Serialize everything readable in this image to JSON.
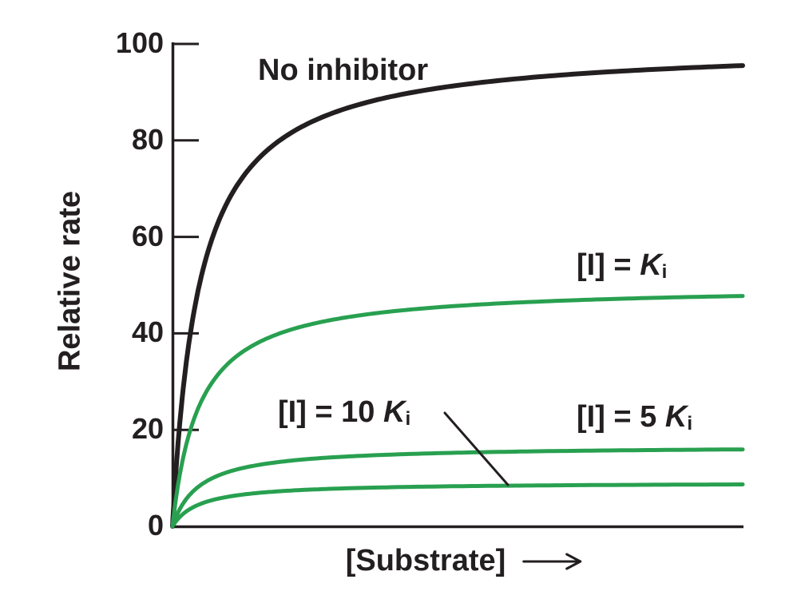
{
  "chart_data": {
    "type": "line",
    "title": "",
    "xlabel": "[Substrate]",
    "ylabel": "Relative rate",
    "x_axis": {
      "label": "[Substrate]",
      "arrow_suffix": true,
      "ticks": [],
      "range": [
        0,
        1
      ],
      "units": "arbitrary (unlabeled)"
    },
    "y_axis": {
      "label": "Relative rate",
      "range": [
        0,
        100
      ],
      "ticks": [
        100,
        80,
        60,
        40,
        20,
        0
      ]
    },
    "grid": false,
    "legend_position": "inline curve labels",
    "model": "Michaelis-Menten: v = vmax_app * s / (km + s), s = fraction of plotted substrate range",
    "series": [
      {
        "name": "No inhibitor",
        "color": "#231f20",
        "stroke_width": 6,
        "vmax_app": 100,
        "km": 0.047,
        "sample_x": [
          0,
          0.05,
          0.1,
          0.2,
          0.4,
          0.6,
          0.8,
          1.0
        ],
        "sample_v": [
          0,
          51.5,
          68.0,
          81.0,
          89.5,
          92.7,
          94.4,
          95.5
        ]
      },
      {
        "name": "[I] = Ki",
        "color": "#28a050",
        "stroke_width": 5,
        "vmax_app": 50,
        "km": 0.047,
        "sample_x": [
          0,
          0.05,
          0.1,
          0.2,
          0.4,
          0.6,
          0.8,
          1.0
        ],
        "sample_v": [
          0,
          25.8,
          34.0,
          40.5,
          44.7,
          46.4,
          47.2,
          47.8
        ]
      },
      {
        "name": "[I] = 5 Ki",
        "color": "#28a050",
        "stroke_width": 5,
        "vmax_app": 16.7,
        "km": 0.047,
        "sample_x": [
          0,
          0.05,
          0.1,
          0.2,
          0.4,
          0.6,
          0.8,
          1.0
        ],
        "sample_v": [
          0,
          8.6,
          11.3,
          13.5,
          14.9,
          15.5,
          15.8,
          16.0
        ]
      },
      {
        "name": "[I] = 10 Ki",
        "color": "#28a050",
        "stroke_width": 5,
        "vmax_app": 9.1,
        "km": 0.047,
        "sample_x": [
          0,
          0.05,
          0.1,
          0.2,
          0.4,
          0.6,
          0.8,
          1.0
        ],
        "sample_v": [
          0,
          4.7,
          6.2,
          7.4,
          8.1,
          8.4,
          8.6,
          8.7
        ]
      }
    ],
    "annotations": [
      {
        "id": "no_inhibitor",
        "text": "No inhibitor",
        "targets": "No inhibitor curve"
      },
      {
        "id": "i_eq_ki",
        "prefix": "[I] = ",
        "symbol": "K",
        "subscript": "i",
        "targets": "[I] = Ki curve"
      },
      {
        "id": "i_eq_10ki",
        "prefix": "[I] = 10 ",
        "symbol": "K",
        "subscript": "i",
        "targets": "[I] = 10 Ki curve",
        "leader_line": true
      },
      {
        "id": "i_eq_5ki",
        "prefix": "[I] = 5 ",
        "symbol": "K",
        "subscript": "i",
        "targets": "[I] = 5 Ki curve"
      }
    ]
  },
  "colors": {
    "background": "#ffffff",
    "text": "#231f20",
    "axis": "#231f20",
    "curve_black": "#231f20",
    "curve_green": "#28a050"
  }
}
